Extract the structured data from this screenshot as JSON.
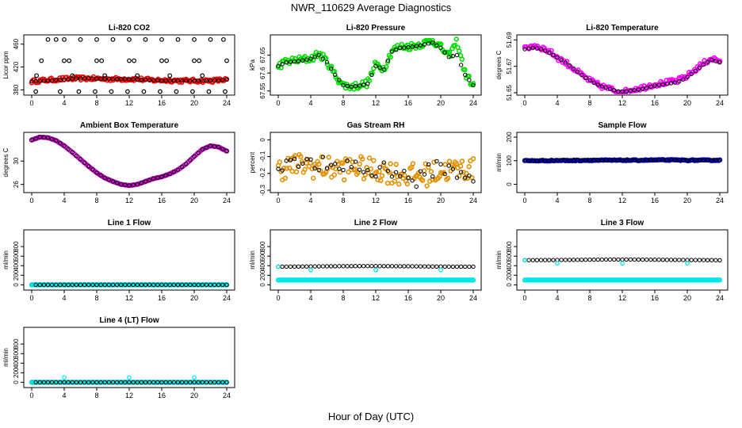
{
  "figure": {
    "title": "NWR_110629  Average Diagnostics",
    "xlabel": "Hour of Day (UTC)"
  },
  "chart_data": [
    {
      "type": "scatter",
      "title": "Li-820 CO2",
      "ylabel": "Licor ppm",
      "xlim": [
        0,
        24
      ],
      "ylim": [
        375,
        472
      ],
      "xticks": [
        0,
        4,
        8,
        12,
        16,
        20,
        24
      ],
      "yticks": [
        380,
        420,
        460
      ],
      "colors": {
        "avg": "#000000",
        "raw": "#ff0000"
      },
      "raw": {
        "start": 395,
        "amp": 3,
        "y": [
          395,
          397,
          399,
          400,
          400,
          399,
          399,
          399,
          397,
          397,
          396,
          396,
          396,
          398
        ]
      },
      "avg": {
        "start": 395,
        "amp": 0,
        "y": [
          395,
          396,
          398,
          400,
          400,
          399,
          399,
          398,
          397,
          396,
          396,
          396,
          396,
          398
        ]
      },
      "extra_points": [
        {
          "hours": [
            2,
            3,
            4,
            6,
            8,
            10,
            12,
            14,
            16,
            18,
            20,
            22,
            23.6
          ],
          "y": 468
        },
        {
          "hours": [
            1.2,
            4,
            4.6,
            8,
            8.6,
            12,
            12.6,
            16,
            16.6,
            20,
            20.6,
            24
          ],
          "y": 431
        },
        {
          "hours": [
            0.6,
            5,
            9,
            13,
            17,
            21
          ],
          "y": 405
        },
        {
          "hours": [
            0.5,
            3.5,
            5.8,
            7.8,
            9.8,
            11.8,
            13.8,
            15.8,
            17.8,
            19.8,
            21.8,
            23.8
          ],
          "y": 377
        }
      ]
    },
    {
      "type": "scatter",
      "title": "Li-820 Pressure",
      "ylabel": "kPa",
      "xlim": [
        0,
        24
      ],
      "ylim": [
        67.545,
        67.7
      ],
      "xticks": [
        0,
        4,
        8,
        12,
        16,
        20,
        24
      ],
      "yticks": [
        67.55,
        67.6,
        67.65
      ],
      "colors": {
        "avg": "#000000",
        "raw": "#00dd00"
      },
      "raw": {
        "start": 67.62,
        "amp": 0.01,
        "y": [
          67.62,
          67.632,
          67.635,
          67.638,
          67.64,
          67.655,
          67.632,
          67.594,
          67.566,
          67.562,
          67.566,
          67.572,
          67.626,
          67.612,
          67.664,
          67.674,
          67.674,
          67.678,
          67.684,
          67.692,
          67.672,
          67.646,
          67.69,
          67.598,
          67.566
        ]
      },
      "avg": {
        "start": 67.62,
        "amp": 0,
        "y": [
          67.62,
          67.63,
          67.632,
          67.635,
          67.64,
          67.65,
          67.63,
          67.595,
          67.566,
          67.562,
          67.565,
          67.57,
          67.62,
          67.61,
          67.66,
          67.67,
          67.672,
          67.675,
          67.68,
          67.685,
          67.67,
          67.645,
          67.65,
          67.595,
          67.566
        ]
      }
    },
    {
      "type": "scatter",
      "title": "Li-820 Temperature",
      "ylabel": "degrees C",
      "xlim": [
        0,
        24
      ],
      "ylim": [
        51.65,
        51.692
      ],
      "xticks": [
        0,
        4,
        8,
        12,
        16,
        20,
        24
      ],
      "yticks": [
        51.65,
        51.67,
        51.69
      ],
      "colors": {
        "avg": "#000000",
        "raw": "#ff00ff"
      },
      "raw": {
        "start": 51.683,
        "amp": 0.0018,
        "y": [
          51.683,
          51.686,
          51.684,
          51.681,
          51.676,
          51.672,
          51.667,
          51.662,
          51.658,
          51.655,
          51.653,
          51.651,
          51.651,
          51.653,
          51.654,
          51.656,
          51.657,
          51.658,
          51.659,
          51.662,
          51.667,
          51.672,
          51.676,
          51.674
        ]
      },
      "avg": {
        "start": 51.683,
        "amp": 0,
        "y": [
          51.683,
          51.684,
          51.683,
          51.68,
          51.676,
          51.672,
          51.667,
          51.662,
          51.658,
          51.655,
          51.653,
          51.651,
          51.651,
          51.652,
          51.653,
          51.655,
          51.656,
          51.657,
          51.658,
          51.661,
          51.666,
          51.671,
          51.675,
          51.673
        ]
      }
    },
    {
      "type": "scatter",
      "title": "Ambient Box Temperature",
      "ylabel": "degrees C",
      "xlim": [
        0,
        24
      ],
      "ylim": [
        25,
        34.5
      ],
      "xticks": [
        0,
        4,
        8,
        12,
        16,
        20,
        24
      ],
      "yticks": [
        26,
        30
      ],
      "colors": {
        "avg": "#000000",
        "raw": "#cc00cc"
      },
      "raw": {
        "start": 33.6,
        "amp": 0,
        "y": [
          33.6,
          34.1,
          34.0,
          33.5,
          32.6,
          31.5,
          30.3,
          29.1,
          28.0,
          27.1,
          26.5,
          26.0,
          25.8,
          26.0,
          26.5,
          27.0,
          27.3,
          27.8,
          28.5,
          29.5,
          30.8,
          32.0,
          32.6,
          32.4,
          31.7
        ]
      },
      "avg": {
        "start": 33.6,
        "amp": 0,
        "y": [
          33.6,
          34.1,
          34.0,
          33.5,
          32.6,
          31.5,
          30.3,
          29.1,
          28.0,
          27.1,
          26.5,
          26.0,
          25.8,
          26.0,
          26.5,
          27.0,
          27.3,
          27.8,
          28.5,
          29.5,
          30.8,
          32.0,
          32.6,
          32.4,
          31.7
        ]
      }
    },
    {
      "type": "scatter",
      "title": "Gas Stream RH",
      "ylabel": "percent",
      "xlim": [
        0,
        24
      ],
      "ylim": [
        -0.3,
        0.03
      ],
      "xticks": [
        0,
        4,
        8,
        12,
        16,
        20,
        24
      ],
      "yticks": [
        -0.3,
        -0.2,
        -0.1,
        0.0
      ],
      "colors": {
        "avg": "#000000",
        "raw": "#e09000"
      },
      "raw": {
        "start": -0.18,
        "amp": 0.07,
        "y": [
          -0.18,
          -0.16,
          -0.15,
          -0.15,
          -0.16,
          -0.16,
          -0.17,
          -0.17,
          -0.17,
          -0.16,
          -0.17,
          -0.18,
          -0.18,
          -0.19,
          -0.2,
          -0.21,
          -0.21,
          -0.21,
          -0.2,
          -0.19,
          -0.18,
          -0.18,
          -0.17,
          -0.18
        ]
      },
      "avg": {
        "start": -0.15,
        "amp": 0.05,
        "y": [
          -0.15,
          -0.13,
          -0.1,
          -0.13,
          -0.16,
          -0.14,
          -0.17,
          -0.2,
          -0.13,
          -0.15,
          -0.18,
          -0.2,
          -0.17,
          -0.16,
          -0.19,
          -0.22,
          -0.24,
          -0.23,
          -0.18,
          -0.14,
          -0.18,
          -0.2,
          -0.19,
          -0.22
        ]
      }
    },
    {
      "type": "scatter",
      "title": "Sample Flow",
      "ylabel": "ml/min",
      "xlim": [
        0,
        24
      ],
      "ylim": [
        -25,
        210
      ],
      "xticks": [
        0,
        4,
        8,
        12,
        16,
        20,
        24
      ],
      "yticks": [
        0,
        100,
        200
      ],
      "colors": {
        "avg": "#000000",
        "raw": "#0000bb"
      },
      "raw": {
        "start": 100,
        "amp": 2,
        "y": [
          100,
          100,
          101,
          101,
          102,
          102,
          102,
          102,
          103,
          103,
          102,
          102,
          102
        ]
      },
      "avg": {
        "start": 100,
        "amp": 0,
        "y": [
          100,
          100,
          101,
          101,
          102,
          102,
          102,
          102,
          103,
          103,
          102,
          102,
          102
        ]
      }
    },
    {
      "type": "scatter",
      "title": "Line 1 Flow",
      "ylabel": "ml/min",
      "xlim": [
        0,
        24
      ],
      "ylim": [
        -60,
        1100
      ],
      "xticks": [
        0,
        4,
        8,
        12,
        16,
        20,
        24
      ],
      "yticks": [
        0,
        200,
        400,
        600,
        800
      ],
      "colors": {
        "avg": "#000000",
        "raw": "#00e5e5"
      },
      "raw": {
        "start": 0,
        "amp": 0,
        "y": [
          0,
          0,
          0,
          0,
          0,
          0,
          0,
          0,
          0,
          0,
          0,
          0,
          0
        ]
      },
      "avg": {
        "start": 0,
        "amp": 0,
        "y": [
          0,
          0,
          0,
          0,
          0,
          0,
          0,
          0,
          0,
          0,
          0,
          0,
          0
        ]
      },
      "extra_points": [
        {
          "hours": [
            0
          ],
          "y": 0
        }
      ]
    },
    {
      "type": "scatter",
      "title": "Line 2 Flow",
      "ylabel": "ml/min",
      "xlim": [
        0,
        24
      ],
      "ylim": [
        -60,
        1100
      ],
      "xticks": [
        0,
        4,
        8,
        12,
        16,
        20,
        24
      ],
      "yticks": [
        0,
        200,
        400,
        600,
        800
      ],
      "colors": {
        "avg": "#000000",
        "raw": "#00e5e5"
      },
      "raw": {
        "start": 100,
        "amp": 0,
        "y": [
          100,
          100,
          100,
          100,
          100,
          100,
          100,
          100,
          100,
          100,
          100,
          100,
          100
        ]
      },
      "avg": {
        "start": 380,
        "amp": 0,
        "y": [
          380,
          382,
          385,
          388,
          390,
          392,
          392,
          390,
          388,
          385,
          382,
          380,
          380
        ]
      },
      "extra_points": [
        {
          "hours": [
            0
          ],
          "y": 380
        },
        {
          "hours": [
            4,
            12,
            20
          ],
          "y": 310
        }
      ]
    },
    {
      "type": "scatter",
      "title": "Line 3 Flow",
      "ylabel": "ml/min",
      "xlim": [
        0,
        24
      ],
      "ylim": [
        -60,
        1100
      ],
      "xticks": [
        0,
        4,
        8,
        12,
        16,
        20,
        24
      ],
      "yticks": [
        0,
        200,
        400,
        600,
        800
      ],
      "colors": {
        "avg": "#000000",
        "raw": "#00e5e5"
      },
      "raw": {
        "start": 100,
        "amp": 0,
        "y": [
          100,
          100,
          100,
          100,
          100,
          100,
          100,
          100,
          100,
          100,
          100,
          100,
          100
        ]
      },
      "avg": {
        "start": 515,
        "amp": 0,
        "y": [
          515,
          518,
          520,
          522,
          525,
          528,
          530,
          528,
          525,
          522,
          520,
          518,
          515
        ]
      },
      "extra_points": [
        {
          "hours": [
            0
          ],
          "y": 515
        },
        {
          "hours": [
            4,
            12,
            20
          ],
          "y": 450
        }
      ]
    },
    {
      "type": "scatter",
      "title": "Line 4 (LT) Flow",
      "ylabel": "ml/min",
      "xlim": [
        0,
        24
      ],
      "ylim": [
        -60,
        1100
      ],
      "xticks": [
        0,
        4,
        8,
        12,
        16,
        20,
        24
      ],
      "yticks": [
        0,
        200,
        400,
        600,
        800
      ],
      "colors": {
        "avg": "#000000",
        "raw": "#00e5e5"
      },
      "raw": {
        "start": 0,
        "amp": 0,
        "y": [
          0,
          0,
          0,
          0,
          0,
          0,
          0,
          0,
          0,
          0,
          0,
          0,
          0
        ]
      },
      "avg": {
        "start": 0,
        "amp": 0,
        "y": [
          0,
          0,
          0,
          0,
          0,
          0,
          0,
          0,
          0,
          0,
          0,
          0,
          0
        ]
      },
      "extra_points": [
        {
          "hours": [
            0
          ],
          "y": 0
        },
        {
          "hours": [
            4,
            12,
            20
          ],
          "y": 100
        }
      ]
    }
  ]
}
